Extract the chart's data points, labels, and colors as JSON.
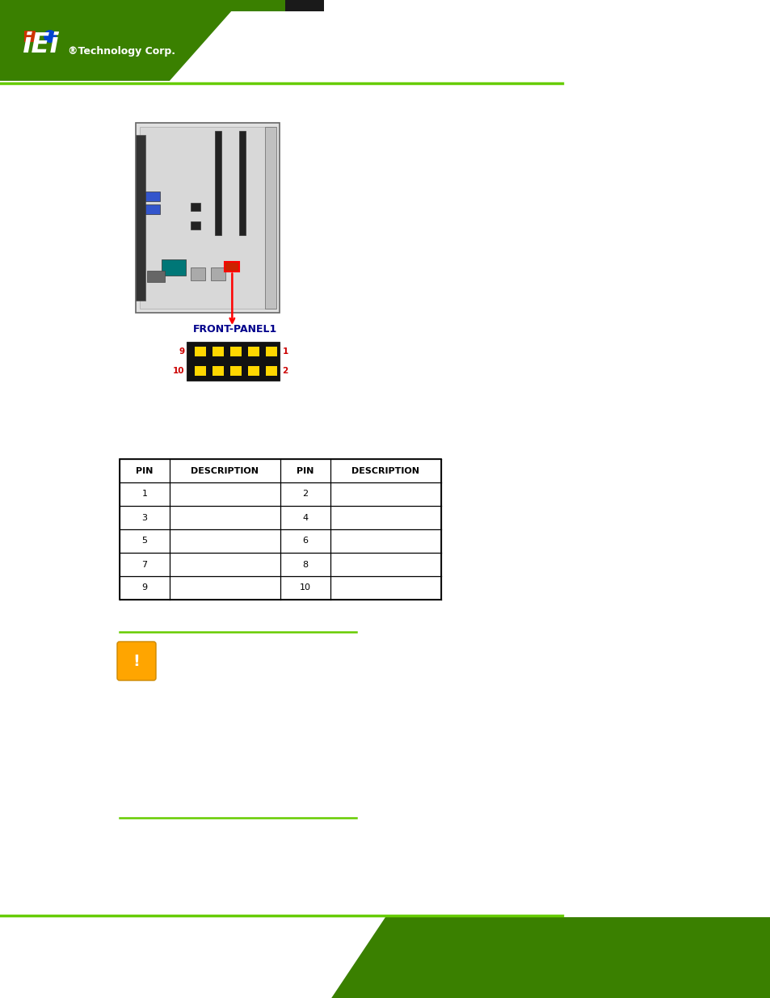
{
  "page_bg": "#ffffff",
  "header_green": "#3a8000",
  "header_dark_stripe": "#1a1a1a",
  "footer_green": "#3a8000",
  "green_line": "#66cc00",
  "logo_text": "iEi",
  "logo_sub": "®Technology Corp.",
  "connector_name": "FRONT-PANEL1",
  "connector_color": "#00008B",
  "pin_num_color": "#cc0000",
  "yellow": "#FFD700",
  "black_housing": "#111111",
  "red_box_color": "#cc2200",
  "table_col_labels": [
    "PIN",
    "DESCRIPTION",
    "PIN",
    "DESCRIPTION"
  ],
  "table_rows": [
    [
      "1",
      "",
      "2",
      ""
    ],
    [
      "3",
      "",
      "4",
      ""
    ],
    [
      "5",
      "",
      "6",
      ""
    ],
    [
      "7",
      "",
      "8",
      ""
    ],
    [
      "9",
      "",
      "10",
      ""
    ]
  ],
  "warn_orange": "#FFA500",
  "board_gray": "#d8d8d8",
  "board_light": "#e8e8e8",
  "board_edge": "#888888"
}
